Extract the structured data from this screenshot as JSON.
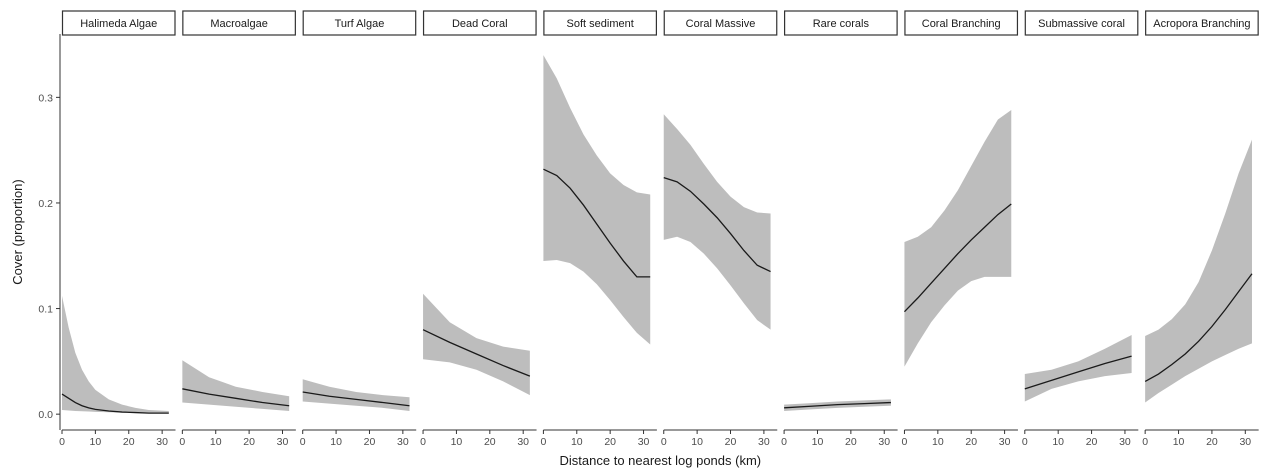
{
  "chart_data": {
    "type": "line",
    "xlabel": "Distance to nearest log ponds (km)",
    "ylabel": "Cover (proportion)",
    "xlim": [
      0,
      34
    ],
    "ylim": [
      -0.015,
      0.36
    ],
    "x_ticks": [
      0,
      10,
      20,
      30
    ],
    "y_ticks": [
      0.0,
      0.1,
      0.2,
      0.3
    ],
    "y_tick_labels": [
      "0.0",
      "0.1",
      "0.2",
      "0.3"
    ],
    "grid": false,
    "colors": {
      "ribbon": "#bdbdbd",
      "line": "#1a1a1a"
    },
    "panels": [
      {
        "name": "Halimeda Algae",
        "x": [
          0,
          2,
          4,
          6,
          8,
          10,
          14,
          18,
          22,
          26,
          32
        ],
        "fit": [
          0.019,
          0.015,
          0.011,
          0.008,
          0.006,
          0.0045,
          0.003,
          0.002,
          0.0015,
          0.001,
          0.001
        ],
        "lower": [
          0.004,
          0.0035,
          0.003,
          0.0028,
          0.0025,
          0.0022,
          0.0018,
          0.0015,
          0.0012,
          0.001,
          0.0008
        ],
        "upper": [
          0.112,
          0.082,
          0.058,
          0.042,
          0.031,
          0.023,
          0.014,
          0.009,
          0.006,
          0.004,
          0.003
        ]
      },
      {
        "name": "Macroalgae",
        "x": [
          0,
          8,
          16,
          24,
          32
        ],
        "fit": [
          0.024,
          0.019,
          0.015,
          0.011,
          0.008
        ],
        "lower": [
          0.011,
          0.009,
          0.007,
          0.005,
          0.003
        ],
        "upper": [
          0.051,
          0.035,
          0.026,
          0.021,
          0.017
        ]
      },
      {
        "name": "Turf Algae",
        "x": [
          0,
          8,
          16,
          24,
          32
        ],
        "fit": [
          0.021,
          0.017,
          0.014,
          0.011,
          0.008
        ],
        "lower": [
          0.012,
          0.01,
          0.008,
          0.006,
          0.003
        ],
        "upper": [
          0.033,
          0.026,
          0.021,
          0.018,
          0.016
        ]
      },
      {
        "name": "Dead Coral",
        "x": [
          0,
          8,
          16,
          24,
          32
        ],
        "fit": [
          0.08,
          0.068,
          0.057,
          0.046,
          0.036
        ],
        "lower": [
          0.052,
          0.049,
          0.042,
          0.031,
          0.018
        ],
        "upper": [
          0.114,
          0.087,
          0.072,
          0.064,
          0.06
        ]
      },
      {
        "name": "Soft sediment",
        "x": [
          0,
          4,
          8,
          12,
          16,
          20,
          24,
          28,
          32
        ],
        "fit": [
          0.232,
          0.226,
          0.214,
          0.198,
          0.18,
          0.162,
          0.145,
          0.13,
          0.13
        ],
        "lower": [
          0.145,
          0.146,
          0.143,
          0.135,
          0.123,
          0.108,
          0.092,
          0.077,
          0.066
        ],
        "upper": [
          0.34,
          0.318,
          0.29,
          0.265,
          0.245,
          0.228,
          0.217,
          0.21,
          0.208
        ]
      },
      {
        "name": "Coral Massive",
        "x": [
          0,
          4,
          8,
          12,
          16,
          20,
          24,
          28,
          32
        ],
        "fit": [
          0.224,
          0.22,
          0.211,
          0.199,
          0.186,
          0.171,
          0.155,
          0.141,
          0.135
        ],
        "lower": [
          0.165,
          0.168,
          0.163,
          0.152,
          0.138,
          0.122,
          0.105,
          0.089,
          0.08
        ],
        "upper": [
          0.284,
          0.27,
          0.255,
          0.237,
          0.22,
          0.206,
          0.196,
          0.191,
          0.19
        ]
      },
      {
        "name": "Rare corals",
        "x": [
          0,
          8,
          16,
          24,
          32
        ],
        "fit": [
          0.006,
          0.0075,
          0.009,
          0.01,
          0.011
        ],
        "lower": [
          0.003,
          0.0045,
          0.006,
          0.007,
          0.008
        ],
        "upper": [
          0.009,
          0.0105,
          0.012,
          0.013,
          0.014
        ]
      },
      {
        "name": "Coral Branching",
        "x": [
          0,
          4,
          8,
          12,
          16,
          20,
          24,
          28,
          32
        ],
        "fit": [
          0.097,
          0.11,
          0.124,
          0.138,
          0.152,
          0.165,
          0.177,
          0.189,
          0.199
        ],
        "lower": [
          0.045,
          0.067,
          0.087,
          0.103,
          0.117,
          0.126,
          0.13,
          0.13,
          0.13
        ],
        "upper": [
          0.163,
          0.168,
          0.177,
          0.193,
          0.212,
          0.235,
          0.258,
          0.279,
          0.288
        ]
      },
      {
        "name": "Submassive coral",
        "x": [
          0,
          8,
          16,
          24,
          32
        ],
        "fit": [
          0.024,
          0.032,
          0.04,
          0.048,
          0.055
        ],
        "lower": [
          0.012,
          0.024,
          0.031,
          0.036,
          0.039
        ],
        "upper": [
          0.038,
          0.042,
          0.05,
          0.062,
          0.075
        ]
      },
      {
        "name": "Acropora Branching",
        "x": [
          0,
          4,
          8,
          12,
          16,
          20,
          24,
          28,
          32
        ],
        "fit": [
          0.031,
          0.038,
          0.047,
          0.057,
          0.069,
          0.083,
          0.099,
          0.116,
          0.133
        ],
        "lower": [
          0.011,
          0.02,
          0.028,
          0.036,
          0.043,
          0.05,
          0.056,
          0.062,
          0.067
        ],
        "upper": [
          0.074,
          0.08,
          0.09,
          0.104,
          0.125,
          0.155,
          0.19,
          0.228,
          0.26
        ]
      }
    ]
  }
}
